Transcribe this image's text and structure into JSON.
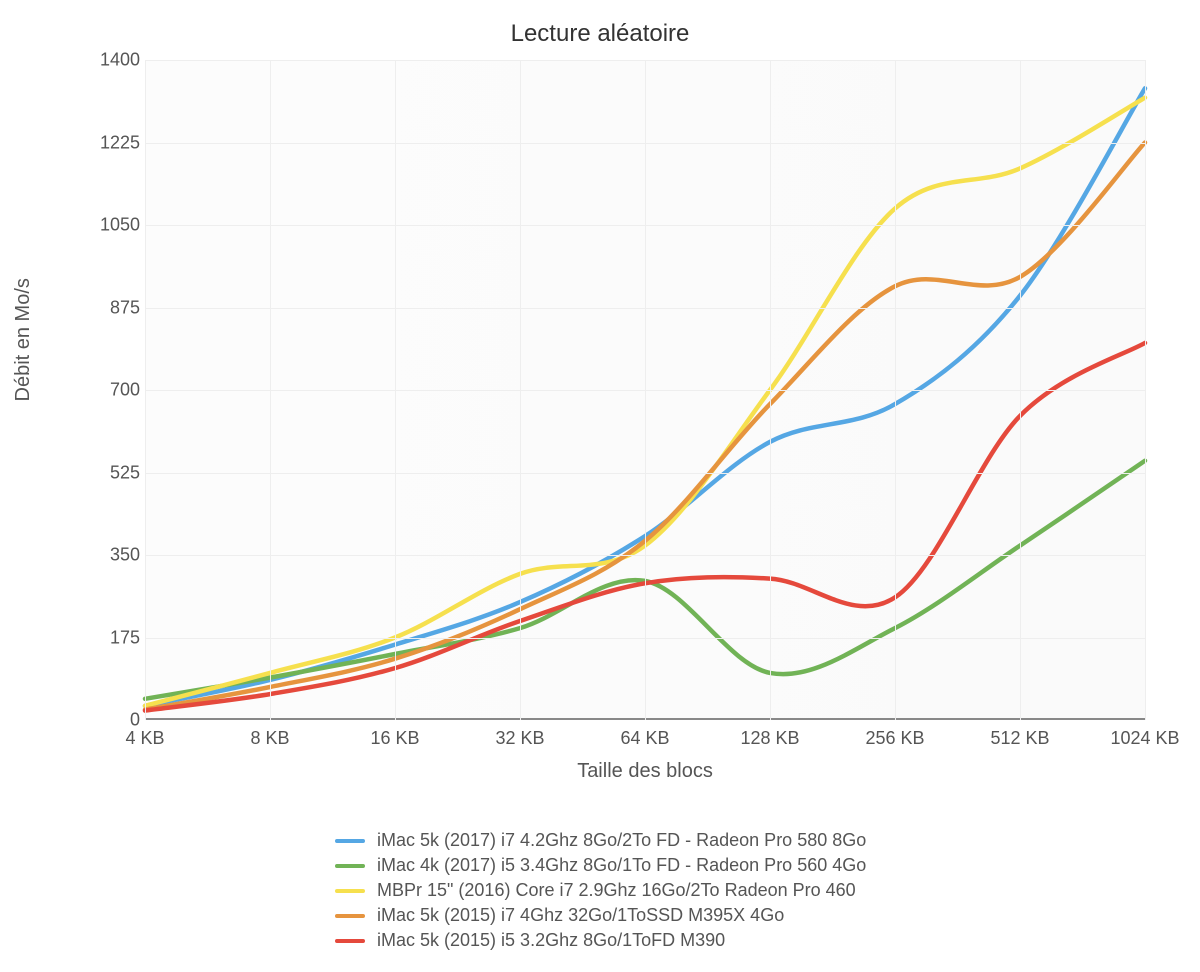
{
  "chart": {
    "type": "line",
    "title": "Lecture aléatoire",
    "title_fontsize": 24,
    "xlabel": "Taille des blocs",
    "ylabel": "Débit en Mo/s",
    "label_fontsize": 20,
    "background_color": "#ffffff",
    "plot_background": "#fcfcfc",
    "grid_color": "#eeeeee",
    "axis_color": "#888888",
    "tick_fontsize": 18,
    "tick_color": "#555555",
    "line_width": 4.5,
    "ylim": [
      0,
      1400
    ],
    "ytick_step": 175,
    "yticks": [
      0,
      175,
      350,
      525,
      700,
      875,
      1050,
      1225,
      1400
    ],
    "x_categories": [
      "4 KB",
      "8 KB",
      "16 KB",
      "32 KB",
      "64 KB",
      "128 KB",
      "256 KB",
      "512 KB",
      "1024 KB"
    ],
    "series": [
      {
        "name": "iMac 5k (2017) i7 4.2Ghz 8Go/2To FD - Radeon Pro 580 8Go",
        "color": "#55a7e4",
        "values": [
          30,
          85,
          160,
          250,
          390,
          590,
          670,
          900,
          1340
        ]
      },
      {
        "name": "iMac 4k (2017) i5 3.4Ghz 8Go/1To FD - Radeon Pro 560 4Go",
        "color": "#71b356",
        "values": [
          45,
          90,
          140,
          195,
          295,
          100,
          195,
          370,
          550
        ]
      },
      {
        "name": "MBPr 15\" (2016) Core i7 2.9Ghz 16Go/2To Radeon Pro 460",
        "color": "#f6e04e",
        "values": [
          30,
          100,
          175,
          310,
          370,
          700,
          1085,
          1170,
          1320
        ]
      },
      {
        "name": "iMac 5k (2015) i7 4Ghz 32Go/1ToSSD M395X 4Go",
        "color": "#e6943e",
        "values": [
          22,
          70,
          130,
          235,
          380,
          670,
          920,
          940,
          1225
        ]
      },
      {
        "name": "iMac 5k (2015) i5 3.2Ghz 8Go/1ToFD M390",
        "color": "#e5493c",
        "values": [
          20,
          55,
          110,
          210,
          290,
          300,
          260,
          645,
          800
        ]
      }
    ],
    "legend": {
      "position": "bottom",
      "fontsize": 18
    }
  }
}
